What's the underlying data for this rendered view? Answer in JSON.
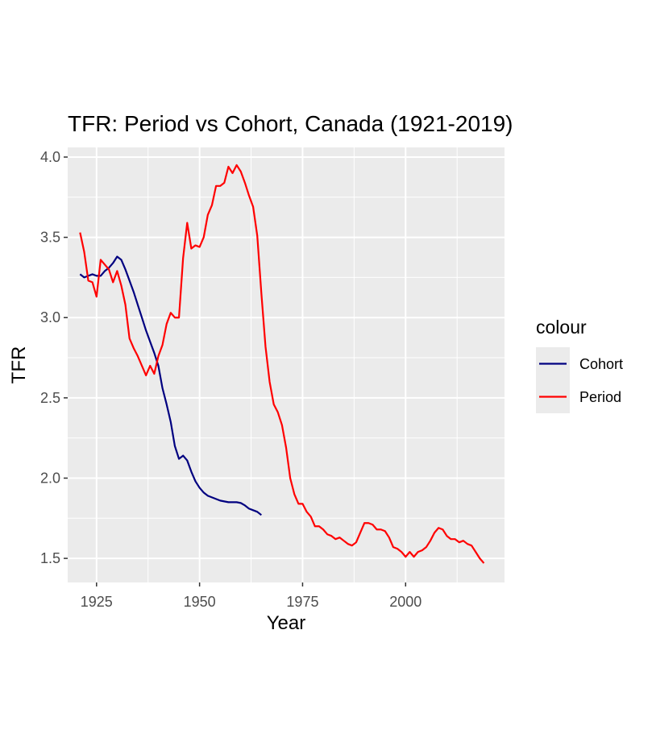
{
  "chart_data": {
    "type": "line",
    "title": "TFR: Period vs Cohort, Canada (1921-2019)",
    "xlabel": "Year",
    "ylabel": "TFR",
    "xlim": [
      1918,
      2024
    ],
    "ylim": [
      1.35,
      4.06
    ],
    "x_ticks": [
      1925,
      1950,
      1975,
      2000
    ],
    "y_ticks": [
      1.5,
      2.0,
      2.5,
      3.0,
      3.5,
      4.0
    ],
    "grid": true,
    "legend": {
      "title": "colour",
      "placement": "right"
    },
    "series": [
      {
        "name": "Cohort",
        "color": "#000080",
        "x": [
          1921,
          1922,
          1923,
          1924,
          1925,
          1926,
          1927,
          1928,
          1929,
          1930,
          1931,
          1932,
          1933,
          1934,
          1935,
          1936,
          1937,
          1938,
          1939,
          1940,
          1941,
          1942,
          1943,
          1944,
          1945,
          1946,
          1947,
          1948,
          1949,
          1950,
          1951,
          1952,
          1953,
          1954,
          1955,
          1956,
          1957,
          1958,
          1959,
          1960,
          1961,
          1962,
          1963,
          1964,
          1965
        ],
        "y": [
          3.27,
          3.25,
          3.26,
          3.27,
          3.26,
          3.26,
          3.29,
          3.31,
          3.34,
          3.38,
          3.36,
          3.3,
          3.23,
          3.16,
          3.08,
          3.0,
          2.92,
          2.85,
          2.78,
          2.7,
          2.56,
          2.46,
          2.35,
          2.2,
          2.12,
          2.14,
          2.11,
          2.04,
          1.98,
          1.94,
          1.91,
          1.89,
          1.88,
          1.87,
          1.86,
          1.855,
          1.85,
          1.85,
          1.85,
          1.845,
          1.83,
          1.81,
          1.8,
          1.79,
          1.77
        ]
      },
      {
        "name": "Period",
        "color": "#ff0000",
        "x": [
          1921,
          1922,
          1923,
          1924,
          1925,
          1926,
          1927,
          1928,
          1929,
          1930,
          1931,
          1932,
          1933,
          1934,
          1935,
          1936,
          1937,
          1938,
          1939,
          1940,
          1941,
          1942,
          1943,
          1944,
          1945,
          1946,
          1947,
          1948,
          1949,
          1950,
          1951,
          1952,
          1953,
          1954,
          1955,
          1956,
          1957,
          1958,
          1959,
          1960,
          1961,
          1962,
          1963,
          1964,
          1965,
          1966,
          1967,
          1968,
          1969,
          1970,
          1971,
          1972,
          1973,
          1974,
          1975,
          1976,
          1977,
          1978,
          1979,
          1980,
          1981,
          1982,
          1983,
          1984,
          1985,
          1986,
          1987,
          1988,
          1989,
          1990,
          1991,
          1992,
          1993,
          1994,
          1995,
          1996,
          1997,
          1998,
          1999,
          2000,
          2001,
          2002,
          2003,
          2004,
          2005,
          2006,
          2007,
          2008,
          2009,
          2010,
          2011,
          2012,
          2013,
          2014,
          2015,
          2016,
          2017,
          2018,
          2019
        ],
        "y": [
          3.53,
          3.41,
          3.23,
          3.22,
          3.13,
          3.36,
          3.33,
          3.3,
          3.22,
          3.29,
          3.2,
          3.08,
          2.87,
          2.81,
          2.76,
          2.7,
          2.64,
          2.7,
          2.65,
          2.76,
          2.83,
          2.96,
          3.03,
          3.0,
          3.0,
          3.37,
          3.59,
          3.43,
          3.45,
          3.44,
          3.5,
          3.64,
          3.7,
          3.82,
          3.82,
          3.84,
          3.94,
          3.9,
          3.95,
          3.91,
          3.84,
          3.76,
          3.69,
          3.51,
          3.15,
          2.82,
          2.6,
          2.46,
          2.41,
          2.33,
          2.19,
          2.0,
          1.9,
          1.84,
          1.84,
          1.79,
          1.76,
          1.7,
          1.7,
          1.68,
          1.65,
          1.64,
          1.62,
          1.63,
          1.61,
          1.59,
          1.58,
          1.6,
          1.66,
          1.72,
          1.72,
          1.71,
          1.68,
          1.68,
          1.67,
          1.63,
          1.57,
          1.56,
          1.54,
          1.51,
          1.54,
          1.51,
          1.54,
          1.55,
          1.57,
          1.61,
          1.66,
          1.69,
          1.68,
          1.64,
          1.62,
          1.62,
          1.6,
          1.61,
          1.59,
          1.58,
          1.54,
          1.5,
          1.47
        ]
      }
    ]
  }
}
